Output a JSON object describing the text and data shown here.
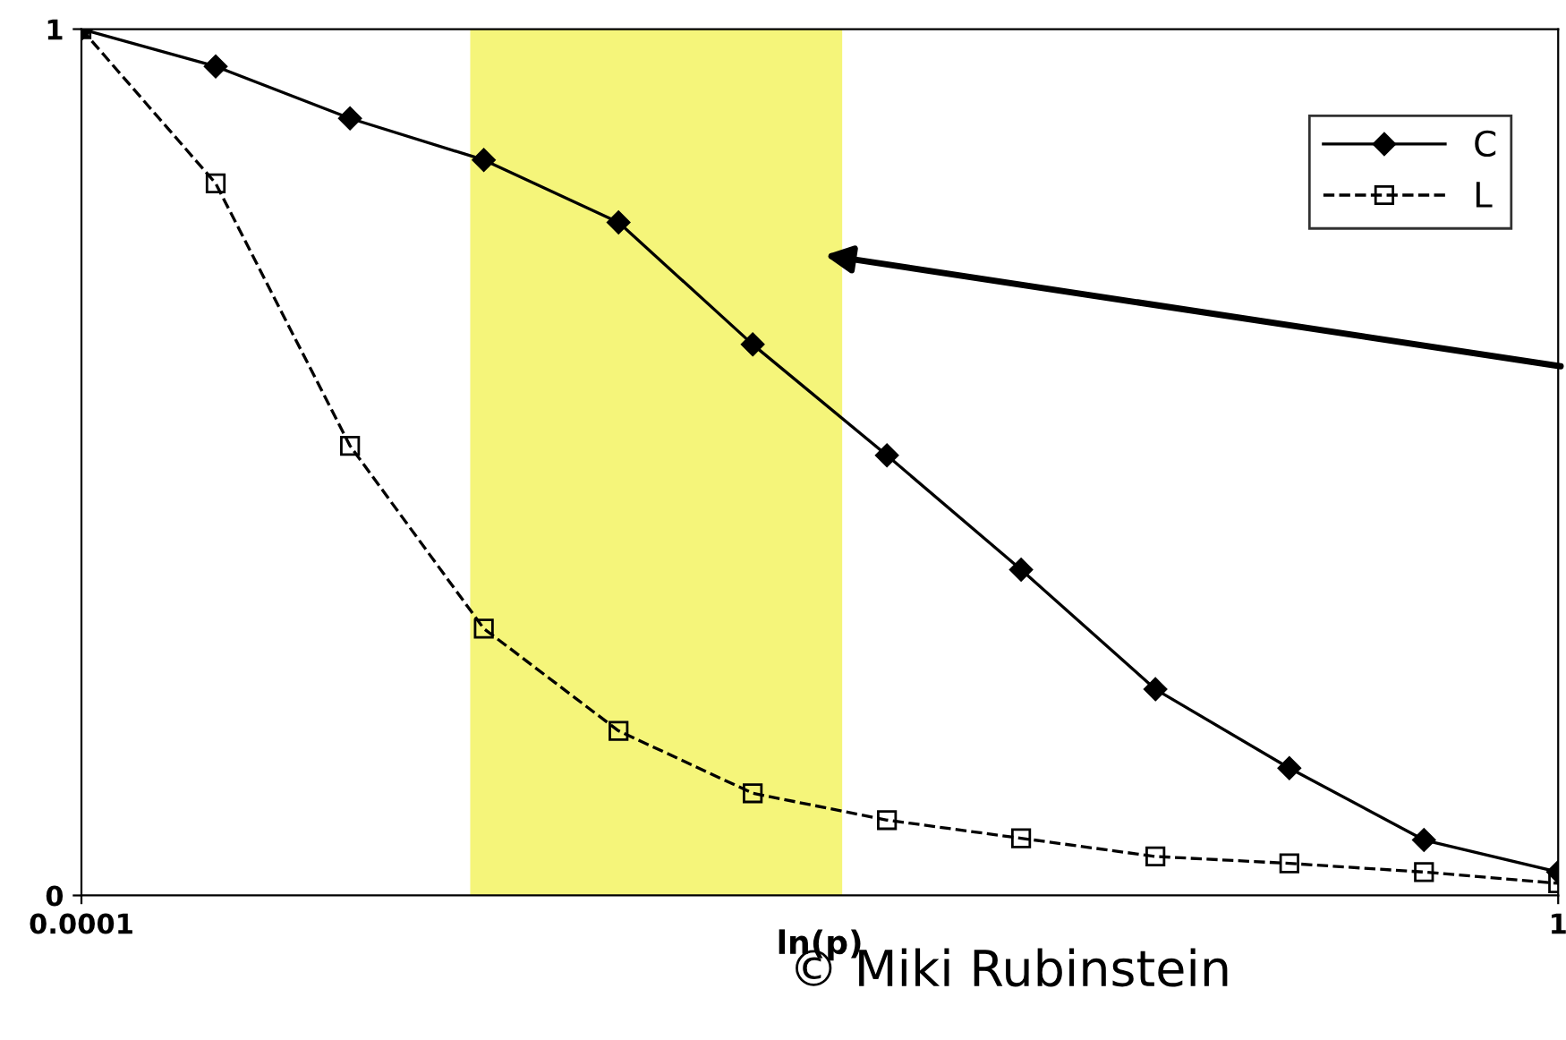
{
  "chart_data": {
    "type": "line",
    "xlabel": "ln(p)",
    "log": "x",
    "xlim": [
      0.0001,
      1
    ],
    "xticks": [
      0.0001,
      1
    ],
    "ylim": [
      0,
      1
    ],
    "yticks": [
      0,
      1
    ],
    "grid": false,
    "legend": "top right",
    "x": [
      0.0001,
      0.000231,
      0.000534,
      0.00123,
      0.00285,
      0.00658,
      0.0152,
      0.0351,
      0.0811,
      0.187,
      0.433,
      1
    ],
    "series": [
      {
        "name": "C",
        "color": "#000000",
        "marker": "diamond",
        "line_style": "solid",
        "values": [
          1,
          0.957,
          0.897,
          0.849,
          0.777,
          0.636,
          0.508,
          0.376,
          0.238,
          0.147,
          0.064,
          0.027
        ]
      },
      {
        "name": "L",
        "color": "#000000",
        "marker": "square",
        "line_style": "dashed",
        "values": [
          1,
          0.822,
          0.519,
          0.308,
          0.19,
          0.118,
          0.087,
          0.066,
          0.045,
          0.037,
          0.027,
          0.014
        ]
      }
    ],
    "bands": [
      {
        "axis": "x",
        "from": 0.00113,
        "to": 0.0115,
        "color": "#f5f57a"
      }
    ],
    "annotations": [
      "© Miki Rubinstein"
    ]
  }
}
